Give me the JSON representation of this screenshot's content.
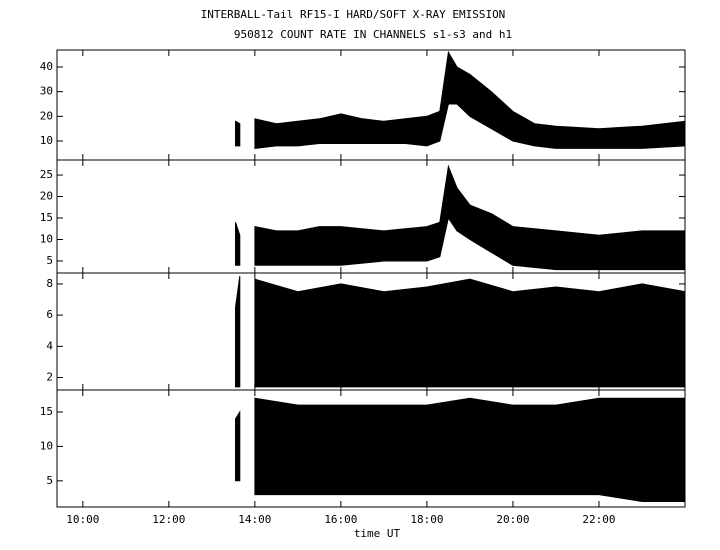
{
  "chart_data": [
    {
      "type": "range",
      "title": "INTERBALL-Tail RF15-I HARD/SOFT X-RAY EMISSION",
      "subtitle": "950812  COUNT RATE IN CHANNELS s1-s3 and h1",
      "color": "#000000",
      "x": [
        13.55,
        13.65,
        13.8,
        14.0,
        14.5,
        15.0,
        15.5,
        16.0,
        16.5,
        17.0,
        17.5,
        18.0,
        18.3,
        18.5,
        18.7,
        19.0,
        19.5,
        20.0,
        20.5,
        21.0,
        22.0,
        23.0,
        24.0
      ],
      "low": [
        8,
        8,
        null,
        7,
        8,
        8,
        9,
        9,
        9,
        9,
        9,
        8,
        10,
        25,
        25,
        20,
        15,
        10,
        8,
        7,
        7,
        7,
        8
      ],
      "high": [
        18,
        17,
        null,
        19,
        17,
        18,
        19,
        21,
        19,
        18,
        19,
        20,
        22,
        46,
        40,
        37,
        30,
        22,
        17,
        16,
        15,
        16,
        18
      ],
      "xlim": [
        9.4,
        24
      ],
      "ylim": [
        2.3,
        46.9
      ],
      "yticks": [
        10,
        20,
        30,
        40
      ]
    },
    {
      "type": "range",
      "color": "#000000",
      "x": [
        13.55,
        13.65,
        13.8,
        14.0,
        14.5,
        15.0,
        15.5,
        16.0,
        17.0,
        18.0,
        18.3,
        18.5,
        18.7,
        19.0,
        19.5,
        20.0,
        21.0,
        22.0,
        23.0,
        24.0
      ],
      "low": [
        4,
        4,
        null,
        4,
        4,
        4,
        4,
        4,
        5,
        5,
        6,
        15,
        12,
        10,
        7,
        4,
        3,
        3,
        3,
        3
      ],
      "high": [
        14,
        11,
        null,
        13,
        12,
        12,
        13,
        13,
        12,
        13,
        14,
        27,
        22,
        18,
        16,
        13,
        12,
        11,
        12,
        12
      ],
      "xlim": [
        9.4,
        24
      ],
      "ylim": [
        2.2,
        28.5
      ],
      "yticks": [
        5,
        10,
        15,
        20,
        25
      ]
    },
    {
      "type": "range",
      "color": "#000000",
      "x": [
        13.55,
        13.65,
        13.8,
        14.0,
        15.0,
        16.0,
        17.0,
        18.0,
        19.0,
        20.0,
        21.0,
        22.0,
        23.0,
        24.0
      ],
      "low": [
        1.4,
        1.4,
        null,
        1.4,
        1.4,
        1.4,
        1.4,
        1.4,
        1.4,
        1.4,
        1.4,
        1.4,
        1.4,
        1.4
      ],
      "high": [
        6.5,
        8.5,
        null,
        8.3,
        7.5,
        8.0,
        7.5,
        7.8,
        8.3,
        7.5,
        7.8,
        7.5,
        8.0,
        7.5
      ],
      "xlim": [
        9.4,
        24
      ],
      "ylim": [
        1.2,
        8.7
      ],
      "yticks": [
        2,
        4,
        6,
        8
      ]
    },
    {
      "type": "range",
      "color": "#000000",
      "x": [
        13.55,
        13.65,
        13.8,
        14.0,
        15.0,
        16.0,
        17.0,
        18.0,
        19.0,
        20.0,
        21.0,
        22.0,
        23.0,
        24.0
      ],
      "low": [
        5,
        5,
        null,
        3,
        3,
        3,
        3,
        3,
        3,
        3,
        3,
        3,
        2,
        2
      ],
      "high": [
        14,
        15,
        null,
        17,
        16,
        16,
        16,
        16,
        17,
        16,
        16,
        17,
        17,
        17
      ],
      "xlim": [
        9.4,
        24
      ],
      "ylim": [
        1.2,
        18.2
      ],
      "yticks": [
        5,
        10,
        15
      ],
      "xlabel": "time UT",
      "xticks": [
        {
          "value": 10,
          "label": "10:00"
        },
        {
          "value": 12,
          "label": "12:00"
        },
        {
          "value": 14,
          "label": "14:00"
        },
        {
          "value": 16,
          "label": "16:00"
        },
        {
          "value": 18,
          "label": "18:00"
        },
        {
          "value": 20,
          "label": "20:00"
        },
        {
          "value": 22,
          "label": "22:00"
        }
      ]
    }
  ]
}
